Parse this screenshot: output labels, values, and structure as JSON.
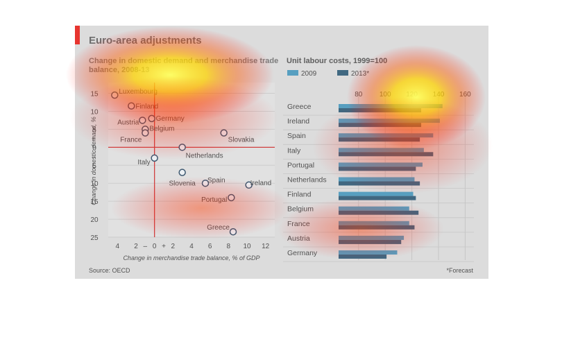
{
  "title": "Euro-area adjustments",
  "source": "Source: OECD",
  "footnote": "*Forecast",
  "colors": {
    "accent_red": "#e3120b",
    "panel_bg": "#d6d6d6",
    "bar_2009": "#3a8fb5",
    "bar_2013": "#1f4e6b",
    "point_stroke": "#1c3b57",
    "zero_line": "#c81e1e"
  },
  "chart_data": [
    {
      "type": "scatter",
      "title": "Change in domestic demand and merchandise trade balance, 2008-13",
      "xlabel": "Change in merchandise trade balance, % of GDP",
      "ylabel": "Change in domestic demand, %",
      "xlim": [
        -5,
        13
      ],
      "ylim": [
        -25,
        18
      ],
      "y_inverted_below_zero_labels": true,
      "x_ticks": [
        "4",
        "2",
        "–",
        "0",
        "+",
        "2",
        "4",
        "6",
        "8",
        "10",
        "12"
      ],
      "y_ticks": [
        "15",
        "10",
        "5",
        "+",
        "0",
        "–",
        "5",
        "10",
        "15",
        "20",
        "25"
      ],
      "grid": true,
      "points": [
        {
          "label": "Luxembourg",
          "x": -4.3,
          "y": 14.5
        },
        {
          "label": "Finland",
          "x": -2.5,
          "y": 11.5
        },
        {
          "label": "Austria",
          "x": -1.3,
          "y": 7.5
        },
        {
          "label": "Germany",
          "x": -0.3,
          "y": 8.0
        },
        {
          "label": "Belgium",
          "x": -1.0,
          "y": 5.0
        },
        {
          "label": "France",
          "x": -1.0,
          "y": 4.0
        },
        {
          "label": "Slovakia",
          "x": 7.5,
          "y": 4.0
        },
        {
          "label": "Netherlands",
          "x": 3.0,
          "y": 0.0
        },
        {
          "label": "Italy",
          "x": 0.0,
          "y": -3.0
        },
        {
          "label": "Slovenia",
          "x": 3.0,
          "y": -7.0
        },
        {
          "label": "Spain",
          "x": 5.5,
          "y": -10.0
        },
        {
          "label": "Ireland",
          "x": 10.2,
          "y": -10.5
        },
        {
          "label": "Portugal",
          "x": 8.3,
          "y": -14.0
        },
        {
          "label": "Greece",
          "x": 8.5,
          "y": -23.5
        }
      ]
    },
    {
      "type": "bar",
      "orientation": "horizontal",
      "title": "Unit labour costs, 1999=100",
      "xlim": [
        65,
        165
      ],
      "x_ticks": [
        80,
        100,
        120,
        140,
        160
      ],
      "legend_placement": "top-left",
      "categories": [
        "Greece",
        "Ireland",
        "Spain",
        "Italy",
        "Portugal",
        "Netherlands",
        "Finland",
        "Belgium",
        "France",
        "Austria",
        "Germany"
      ],
      "series": [
        {
          "name": "2009",
          "values": [
            143,
            141,
            136,
            129,
            128,
            122,
            121,
            118,
            118,
            114,
            109
          ]
        },
        {
          "name": "2013*",
          "values": [
            127,
            127,
            126,
            136,
            123,
            126,
            123,
            125,
            122,
            112,
            101
          ]
        }
      ]
    }
  ]
}
